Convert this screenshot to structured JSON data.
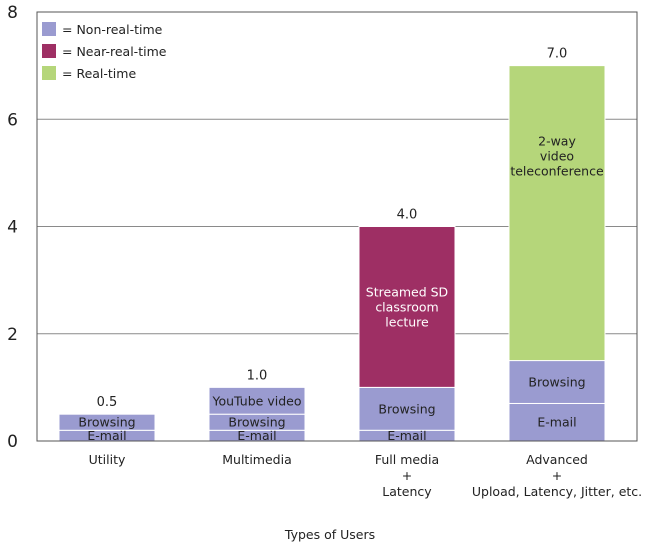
{
  "chart_data": {
    "type": "bar",
    "stacked": true,
    "xlabel": "Types of Users",
    "ylabel": "",
    "ylim": [
      0,
      8
    ],
    "yticks": [
      0,
      2,
      4,
      6,
      8
    ],
    "grid": true,
    "legend_position": "top-left",
    "legend": [
      {
        "key": "non_real_time",
        "label": "= Non-real-time",
        "color": "#9a9bd0"
      },
      {
        "key": "near_real_time",
        "label": "= Near-real-time",
        "color": "#9e2f64"
      },
      {
        "key": "real_time",
        "label": "= Real-time",
        "color": "#b5d67a"
      }
    ],
    "categories": [
      {
        "label": [
          "Utility"
        ],
        "total_label": "0.5",
        "segments": [
          {
            "label": "E-mail",
            "value": 0.2,
            "class": "non_real_time"
          },
          {
            "label": "Browsing",
            "value": 0.3,
            "class": "non_real_time"
          }
        ]
      },
      {
        "label": [
          "Multimedia"
        ],
        "total_label": "1.0",
        "segments": [
          {
            "label": "E-mail",
            "value": 0.2,
            "class": "non_real_time"
          },
          {
            "label": "Browsing",
            "value": 0.3,
            "class": "non_real_time"
          },
          {
            "label": "YouTube video",
            "value": 0.5,
            "class": "non_real_time"
          }
        ]
      },
      {
        "label": [
          "Full media",
          "+",
          "Latency"
        ],
        "total_label": "4.0",
        "segments": [
          {
            "label": "E-mail",
            "value": 0.2,
            "class": "non_real_time"
          },
          {
            "label": "Browsing",
            "value": 0.8,
            "class": "non_real_time"
          },
          {
            "label": "Streamed SD classroom lecture",
            "value": 3.0,
            "class": "near_real_time"
          }
        ]
      },
      {
        "label": [
          "Advanced",
          "+",
          "Upload, Latency, Jitter, etc."
        ],
        "total_label": "7.0",
        "segments": [
          {
            "label": "E-mail",
            "value": 0.7,
            "class": "non_real_time"
          },
          {
            "label": "Browsing",
            "value": 0.8,
            "class": "non_real_time"
          },
          {
            "label": "2-way video teleconference",
            "value": 5.5,
            "class": "real_time"
          }
        ]
      }
    ]
  }
}
